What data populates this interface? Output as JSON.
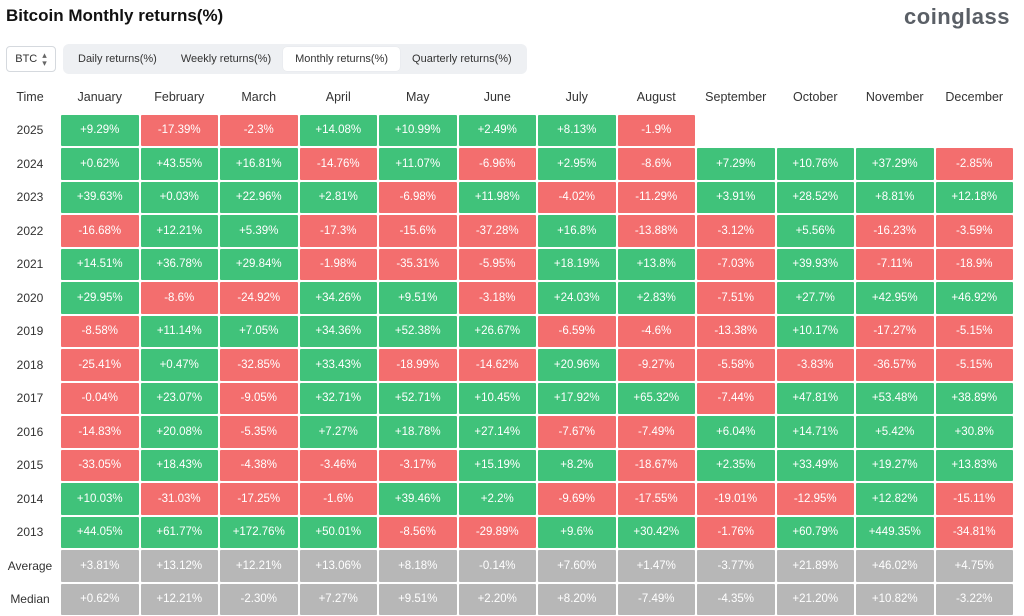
{
  "header": {
    "title": "Bitcoin Monthly returns(%)",
    "brand": "coinglass"
  },
  "controls": {
    "asset": "BTC",
    "tabs": [
      {
        "label": "Daily returns(%)",
        "active": false
      },
      {
        "label": "Weekly returns(%)",
        "active": false
      },
      {
        "label": "Monthly returns(%)",
        "active": true
      },
      {
        "label": "Quarterly returns(%)",
        "active": false
      }
    ]
  },
  "colors": {
    "positive": "#40c27a",
    "negative": "#f36e6e",
    "summary": "#b7b7b7"
  },
  "table": {
    "time_label": "Time",
    "months": [
      "January",
      "February",
      "March",
      "April",
      "May",
      "June",
      "July",
      "August",
      "September",
      "October",
      "November",
      "December"
    ],
    "rows": [
      {
        "year": "2025",
        "values": [
          "+9.29%",
          "-17.39%",
          "-2.3%",
          "+14.08%",
          "+10.99%",
          "+2.49%",
          "+8.13%",
          "-1.9%",
          "",
          "",
          "",
          ""
        ]
      },
      {
        "year": "2024",
        "values": [
          "+0.62%",
          "+43.55%",
          "+16.81%",
          "-14.76%",
          "+11.07%",
          "-6.96%",
          "+2.95%",
          "-8.6%",
          "+7.29%",
          "+10.76%",
          "+37.29%",
          "-2.85%"
        ]
      },
      {
        "year": "2023",
        "values": [
          "+39.63%",
          "+0.03%",
          "+22.96%",
          "+2.81%",
          "-6.98%",
          "+11.98%",
          "-4.02%",
          "-11.29%",
          "+3.91%",
          "+28.52%",
          "+8.81%",
          "+12.18%"
        ]
      },
      {
        "year": "2022",
        "values": [
          "-16.68%",
          "+12.21%",
          "+5.39%",
          "-17.3%",
          "-15.6%",
          "-37.28%",
          "+16.8%",
          "-13.88%",
          "-3.12%",
          "+5.56%",
          "-16.23%",
          "-3.59%"
        ]
      },
      {
        "year": "2021",
        "values": [
          "+14.51%",
          "+36.78%",
          "+29.84%",
          "-1.98%",
          "-35.31%",
          "-5.95%",
          "+18.19%",
          "+13.8%",
          "-7.03%",
          "+39.93%",
          "-7.11%",
          "-18.9%"
        ]
      },
      {
        "year": "2020",
        "values": [
          "+29.95%",
          "-8.6%",
          "-24.92%",
          "+34.26%",
          "+9.51%",
          "-3.18%",
          "+24.03%",
          "+2.83%",
          "-7.51%",
          "+27.7%",
          "+42.95%",
          "+46.92%"
        ]
      },
      {
        "year": "2019",
        "values": [
          "-8.58%",
          "+11.14%",
          "+7.05%",
          "+34.36%",
          "+52.38%",
          "+26.67%",
          "-6.59%",
          "-4.6%",
          "-13.38%",
          "+10.17%",
          "-17.27%",
          "-5.15%"
        ]
      },
      {
        "year": "2018",
        "values": [
          "-25.41%",
          "+0.47%",
          "-32.85%",
          "+33.43%",
          "-18.99%",
          "-14.62%",
          "+20.96%",
          "-9.27%",
          "-5.58%",
          "-3.83%",
          "-36.57%",
          "-5.15%"
        ]
      },
      {
        "year": "2017",
        "values": [
          "-0.04%",
          "+23.07%",
          "-9.05%",
          "+32.71%",
          "+52.71%",
          "+10.45%",
          "+17.92%",
          "+65.32%",
          "-7.44%",
          "+47.81%",
          "+53.48%",
          "+38.89%"
        ]
      },
      {
        "year": "2016",
        "values": [
          "-14.83%",
          "+20.08%",
          "-5.35%",
          "+7.27%",
          "+18.78%",
          "+27.14%",
          "-7.67%",
          "-7.49%",
          "+6.04%",
          "+14.71%",
          "+5.42%",
          "+30.8%"
        ]
      },
      {
        "year": "2015",
        "values": [
          "-33.05%",
          "+18.43%",
          "-4.38%",
          "-3.46%",
          "-3.17%",
          "+15.19%",
          "+8.2%",
          "-18.67%",
          "+2.35%",
          "+33.49%",
          "+19.27%",
          "+13.83%"
        ]
      },
      {
        "year": "2014",
        "values": [
          "+10.03%",
          "-31.03%",
          "-17.25%",
          "-1.6%",
          "+39.46%",
          "+2.2%",
          "-9.69%",
          "-17.55%",
          "-19.01%",
          "-12.95%",
          "+12.82%",
          "-15.11%"
        ]
      },
      {
        "year": "2013",
        "values": [
          "+44.05%",
          "+61.77%",
          "+172.76%",
          "+50.01%",
          "-8.56%",
          "-29.89%",
          "+9.6%",
          "+30.42%",
          "-1.76%",
          "+60.79%",
          "+449.35%",
          "-34.81%"
        ]
      }
    ],
    "summary": [
      {
        "label": "Average",
        "values": [
          "+3.81%",
          "+13.12%",
          "+12.21%",
          "+13.06%",
          "+8.18%",
          "-0.14%",
          "+7.60%",
          "+1.47%",
          "-3.77%",
          "+21.89%",
          "+46.02%",
          "+4.75%"
        ]
      },
      {
        "label": "Median",
        "values": [
          "+0.62%",
          "+12.21%",
          "-2.30%",
          "+7.27%",
          "+9.51%",
          "+2.20%",
          "+8.20%",
          "-7.49%",
          "-4.35%",
          "+21.20%",
          "+10.82%",
          "-3.22%"
        ]
      }
    ]
  }
}
